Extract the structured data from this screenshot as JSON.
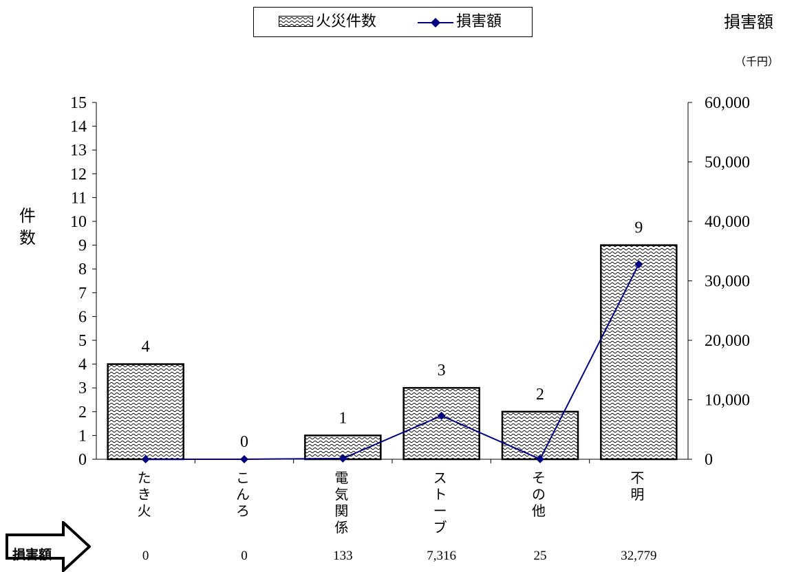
{
  "legend": {
    "bar_label": "火災件数",
    "line_label": "損害額"
  },
  "left_axis_title": [
    "件",
    "数"
  ],
  "right_axis_title": "損害額",
  "right_axis_unit": "（千円）",
  "damage_row_label": "損害額",
  "colors": {
    "line": "#000080",
    "bar_stroke": "#000000",
    "bar_fill": "#ffffff"
  },
  "chart_data": {
    "type": "bar",
    "categories": [
      [
        "た",
        "き",
        "火"
      ],
      [
        "こ",
        "ん",
        "ろ"
      ],
      [
        "電",
        "気",
        "関",
        "係"
      ],
      [
        "ス",
        "ト",
        "ー",
        "ブ"
      ],
      [
        "そ",
        "の",
        "他"
      ],
      [
        "不",
        "明"
      ]
    ],
    "series": [
      {
        "name": "火災件数",
        "type": "bar",
        "axis": "left",
        "values": [
          4,
          0,
          1,
          3,
          2,
          9
        ]
      },
      {
        "name": "損害額",
        "type": "line",
        "axis": "right",
        "values": [
          0,
          0,
          133,
          7316,
          25,
          32779
        ]
      }
    ],
    "bar_value_labels": [
      "4",
      "0",
      "1",
      "3",
      "2",
      "9"
    ],
    "damage_labels": [
      "0",
      "0",
      "133",
      "7,316",
      "25",
      "32,779"
    ],
    "left_axis": {
      "ylim": [
        0,
        15
      ],
      "ticks": [
        0,
        1,
        2,
        3,
        4,
        5,
        6,
        7,
        8,
        9,
        10,
        11,
        12,
        13,
        14,
        15
      ]
    },
    "right_axis": {
      "ylim": [
        0,
        60000
      ],
      "ticks": [
        "0",
        "10,000",
        "20,000",
        "30,000",
        "40,000",
        "50,000",
        "60,000"
      ]
    },
    "grid": false,
    "legend_position": "top-center"
  }
}
